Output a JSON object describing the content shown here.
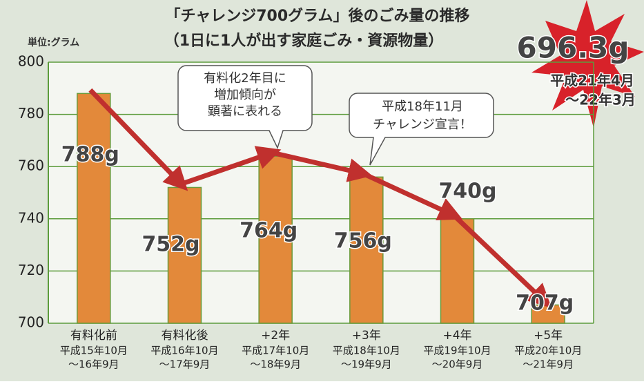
{
  "chart_data": {
    "type": "bar",
    "title": [
      "「チャレンジ700グラム」後のごみ量の推移",
      "（1日に1人が出す家庭ごみ・資源物量）"
    ],
    "y_label": "単位:グラム",
    "categories": [
      "有料化前",
      "有料化後",
      "+2年",
      "+3年",
      "+4年",
      "+5年"
    ],
    "periods": [
      [
        "平成15年10月",
        "～16年9月"
      ],
      [
        "平成16年10月",
        "～17年9月"
      ],
      [
        "平成17年10月",
        "～18年9月"
      ],
      [
        "平成18年10月",
        "～19年9月"
      ],
      [
        "平成19年10月",
        "～20年9月"
      ],
      [
        "平成20年10月",
        "～21年9月"
      ]
    ],
    "values": [
      788,
      752,
      764,
      756,
      740,
      707
    ],
    "value_labels": [
      "788g",
      "752g",
      "764g",
      "756g",
      "740g",
      "707g"
    ],
    "color": "#e3893a",
    "ylim": [
      700,
      800
    ],
    "yticks": [
      700,
      720,
      740,
      760,
      780,
      800
    ],
    "grid": true,
    "annotations": [
      [
        "有料化2年目に",
        "増加傾向が",
        "顕著に表れる"
      ],
      [
        "平成18年11月",
        "チャレンジ宣言！"
      ]
    ],
    "highlight": {
      "value_label": "696.3g",
      "period": [
        "平成21年4月",
        "～22年3月"
      ]
    }
  }
}
